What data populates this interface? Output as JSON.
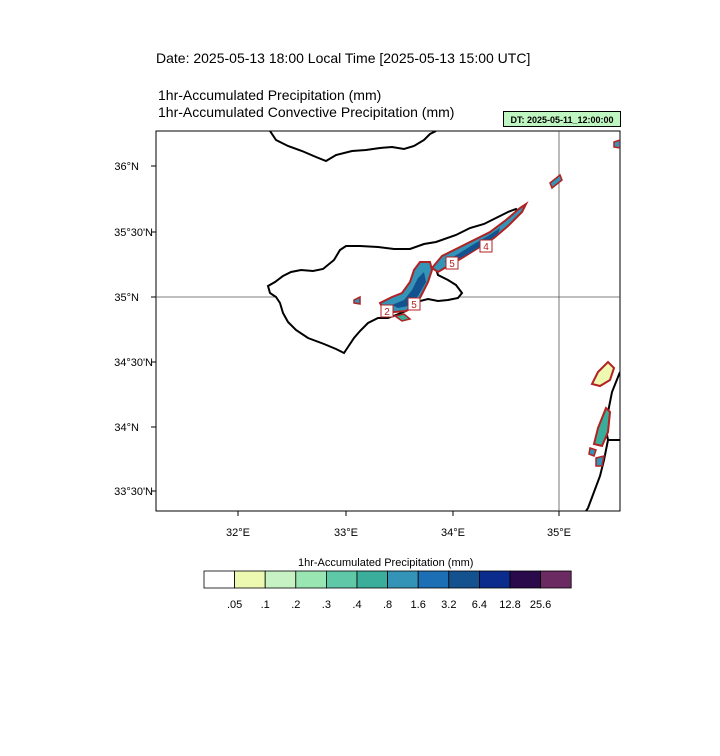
{
  "header": {
    "date_line": "Date: 2025-05-13  18:00 Local Time [2025-05-13  15:00 UTC]",
    "variable_line_1": "1hr-Accumulated Precipitation   (mm)",
    "variable_line_2": "1hr-Accumulated Convective Precipitation   (mm)",
    "dt_badge": "DT: 2025-05-11_12:00:00"
  },
  "map": {
    "region": "Cyprus and eastern Mediterranean",
    "lat_labels": [
      "36°N",
      "35°30'N",
      "35°N",
      "34°30'N",
      "34°N",
      "33°30'N"
    ],
    "lon_labels": [
      "32°E",
      "33°E",
      "34°E",
      "35°E"
    ],
    "gridlines": [
      "35°N",
      "35°E"
    ],
    "convective_contour_labels": [
      "5",
      "5",
      "2",
      "4"
    ],
    "colors": {
      "coastline": "#000000",
      "contour_outline": "#b22222",
      "heavy_core": "#1a6aa8",
      "badge_bg": "#bff5c0"
    }
  },
  "colorbar": {
    "title": "1hr-Accumulated Precipitation  (mm)",
    "colors": [
      "#ffffff",
      "#edf8b1",
      "#c7f2c4",
      "#99e6b3",
      "#5fc8a6",
      "#3aae9a",
      "#3394b8",
      "#1c6fb5",
      "#14528f",
      "#0b2c8c",
      "#2a0a4a",
      "#6b2a62"
    ],
    "labels": [
      ".05",
      ".1",
      ".2",
      ".3",
      ".4",
      ".8",
      "1.6",
      "3.2",
      "6.4",
      "12.8",
      "25.6"
    ]
  }
}
